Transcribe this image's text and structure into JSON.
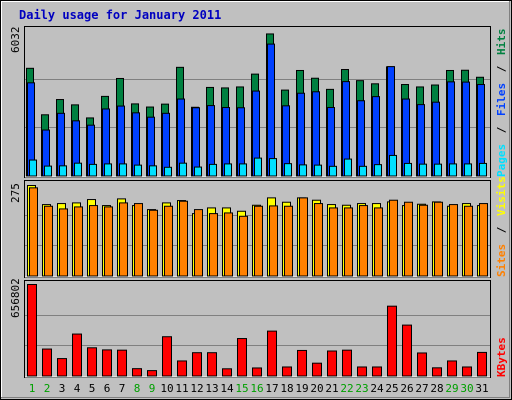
{
  "title": "Daily usage for January 2011",
  "colors": {
    "background": "#c0c0c0",
    "title": "#0000c0",
    "hits": "#008040",
    "files": "#0040ff",
    "pages": "#00e0ff",
    "visits": "#ffff00",
    "sites": "#ff8000",
    "kbytes": "#ff0000",
    "weekend": "#00a000",
    "weekday": "#000000"
  },
  "chart_data": [
    {
      "type": "bar",
      "panel": "top",
      "ymax_label": "6032",
      "ylim": [
        0,
        6032
      ],
      "legend": [
        "Pages",
        "/",
        "Files",
        "/",
        "Hits"
      ],
      "categories": [
        "1",
        "2",
        "3",
        "4",
        "5",
        "6",
        "7",
        "8",
        "9",
        "10",
        "11",
        "12",
        "13",
        "14",
        "15",
        "16",
        "17",
        "18",
        "19",
        "20",
        "21",
        "22",
        "23",
        "24",
        "25",
        "26",
        "27",
        "28",
        "29",
        "30",
        "31"
      ],
      "series": [
        {
          "name": "Hits",
          "values": [
            4470,
            2550,
            3180,
            2960,
            2420,
            3310,
            4050,
            3000,
            2870,
            2990,
            4510,
            2860,
            3680,
            3660,
            3700,
            4230,
            5890,
            3570,
            4380,
            4060,
            3600,
            4420,
            3960,
            3830,
            4530,
            3800,
            3700,
            3780,
            4380,
            4390,
            4100
          ]
        },
        {
          "name": "Files",
          "values": [
            3870,
            1920,
            2610,
            2300,
            2120,
            2790,
            2910,
            2630,
            2450,
            2610,
            3200,
            2840,
            2930,
            2850,
            2840,
            3530,
            5470,
            2920,
            3440,
            3500,
            2850,
            3920,
            3130,
            3300,
            4540,
            3200,
            2970,
            3070,
            3910,
            3900,
            3800
          ]
        },
        {
          "name": "Pages",
          "values": [
            680,
            430,
            440,
            550,
            500,
            520,
            520,
            470,
            440,
            380,
            550,
            390,
            500,
            520,
            520,
            760,
            740,
            530,
            480,
            470,
            420,
            720,
            420,
            490,
            870,
            540,
            510,
            510,
            520,
            520,
            540
          ]
        }
      ]
    },
    {
      "type": "bar",
      "panel": "middle",
      "ymax_label": "275",
      "ylim": [
        0,
        275
      ],
      "legend": [
        "Sites",
        "/",
        "Visits"
      ],
      "categories": [
        "1",
        "2",
        "3",
        "4",
        "5",
        "6",
        "7",
        "8",
        "9",
        "10",
        "11",
        "12",
        "13",
        "14",
        "15",
        "16",
        "17",
        "18",
        "19",
        "20",
        "21",
        "22",
        "23",
        "24",
        "25",
        "26",
        "27",
        "28",
        "29",
        "30",
        "31"
      ],
      "series": [
        {
          "name": "Visits",
          "values": [
            272,
            215,
            218,
            220,
            230,
            212,
            232,
            212,
            200,
            220,
            227,
            188,
            205,
            205,
            195,
            213,
            235,
            222,
            235,
            228,
            215,
            213,
            218,
            218,
            223,
            212,
            216,
            223,
            210,
            218,
            212
          ]
        },
        {
          "name": "Sites",
          "values": [
            265,
            210,
            202,
            208,
            212,
            208,
            220,
            218,
            198,
            210,
            225,
            200,
            188,
            190,
            180,
            210,
            211,
            210,
            235,
            218,
            205,
            205,
            212,
            205,
            228,
            222,
            213,
            222,
            215,
            210,
            218
          ]
        }
      ]
    },
    {
      "type": "bar",
      "panel": "bottom",
      "ymax_label": "656802",
      "ylim": [
        0,
        656802
      ],
      "legend": [
        "KBytes"
      ],
      "categories": [
        "1",
        "2",
        "3",
        "4",
        "5",
        "6",
        "7",
        "8",
        "9",
        "10",
        "11",
        "12",
        "13",
        "14",
        "15",
        "16",
        "17",
        "18",
        "19",
        "20",
        "21",
        "22",
        "23",
        "24",
        "25",
        "26",
        "27",
        "28",
        "29",
        "30",
        "31"
      ],
      "series": [
        {
          "name": "KBytes",
          "values": [
            656802,
            196000,
            128000,
            303000,
            205000,
            190000,
            188000,
            56000,
            42000,
            284000,
            111000,
            170000,
            170000,
            55000,
            271000,
            61000,
            324000,
            68000,
            186000,
            95000,
            182000,
            188000,
            68000,
            68000,
            502000,
            367000,
            168000,
            62000,
            111000,
            68000,
            172000
          ]
        }
      ]
    }
  ],
  "weekend_days": [
    "1",
    "2",
    "8",
    "9",
    "15",
    "16",
    "22",
    "23",
    "29",
    "30"
  ]
}
